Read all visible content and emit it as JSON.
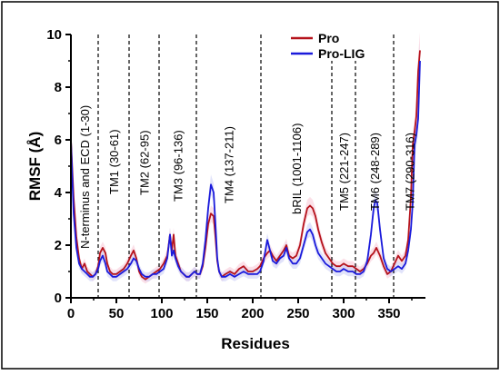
{
  "chart_data": {
    "type": "line",
    "xlabel": "Residues",
    "ylabel": "RMSF (Å)",
    "xlim": [
      0,
      390
    ],
    "ylim": [
      0,
      10
    ],
    "xticks": [
      0,
      50,
      100,
      150,
      200,
      250,
      300,
      350
    ],
    "yticks": [
      0,
      2,
      4,
      6,
      8,
      10
    ],
    "legend": {
      "position": "top-right"
    },
    "grid": false,
    "regions": [
      {
        "label": "N-terminus and ECD (1-30)",
        "x_start": 0,
        "boundary": 30
      },
      {
        "label": "TM1 (30-61)",
        "boundary": 64
      },
      {
        "label": "TM2 (62-95)",
        "boundary": 97
      },
      {
        "label": "TM3 (96-136)",
        "boundary": 138
      },
      {
        "label": "TM4 (137-211)",
        "boundary": 209
      },
      {
        "label": "bRIL (1001-1106)",
        "boundary": 287
      },
      {
        "label": "TM5 (221-247)",
        "boundary": 313
      },
      {
        "label": "TM6 (248-289)",
        "boundary": 355
      },
      {
        "label": "TM7 (290-316)",
        "x_end": 390
      }
    ],
    "series": [
      {
        "name": "Pro",
        "color": "#b5121b",
        "band_color": "#f7c6d6",
        "points": [
          [
            0,
            6.0
          ],
          [
            3,
            3.8
          ],
          [
            6,
            2.3
          ],
          [
            9,
            1.5
          ],
          [
            12,
            1.1
          ],
          [
            15,
            1.3
          ],
          [
            18,
            1.0
          ],
          [
            21,
            0.9
          ],
          [
            24,
            0.8
          ],
          [
            27,
            0.9
          ],
          [
            30,
            1.2
          ],
          [
            32,
            1.7
          ],
          [
            35,
            1.9
          ],
          [
            38,
            1.7
          ],
          [
            40,
            1.3
          ],
          [
            43,
            1.0
          ],
          [
            46,
            0.9
          ],
          [
            50,
            0.9
          ],
          [
            54,
            1.0
          ],
          [
            58,
            1.1
          ],
          [
            62,
            1.3
          ],
          [
            66,
            1.6
          ],
          [
            69,
            1.8
          ],
          [
            72,
            1.5
          ],
          [
            75,
            1.0
          ],
          [
            78,
            0.8
          ],
          [
            82,
            0.7
          ],
          [
            86,
            0.8
          ],
          [
            90,
            0.9
          ],
          [
            94,
            1.0
          ],
          [
            98,
            1.1
          ],
          [
            102,
            1.3
          ],
          [
            106,
            1.6
          ],
          [
            109,
            2.4
          ],
          [
            111,
            1.8
          ],
          [
            113,
            2.4
          ],
          [
            115,
            1.6
          ],
          [
            118,
            1.3
          ],
          [
            121,
            1.0
          ],
          [
            124,
            0.9
          ],
          [
            127,
            0.8
          ],
          [
            130,
            0.8
          ],
          [
            133,
            0.9
          ],
          [
            136,
            1.0
          ],
          [
            139,
            0.9
          ],
          [
            142,
            0.9
          ],
          [
            145,
            1.2
          ],
          [
            148,
            1.9
          ],
          [
            151,
            2.8
          ],
          [
            154,
            3.2
          ],
          [
            157,
            3.1
          ],
          [
            159,
            2.3
          ],
          [
            161,
            1.4
          ],
          [
            163,
            1.0
          ],
          [
            166,
            0.8
          ],
          [
            170,
            0.9
          ],
          [
            175,
            1.0
          ],
          [
            180,
            0.9
          ],
          [
            185,
            1.1
          ],
          [
            190,
            1.2
          ],
          [
            195,
            1.0
          ],
          [
            200,
            1.0
          ],
          [
            205,
            1.1
          ],
          [
            208,
            1.2
          ],
          [
            212,
            1.5
          ],
          [
            216,
            1.7
          ],
          [
            219,
            1.8
          ],
          [
            222,
            1.6
          ],
          [
            226,
            1.4
          ],
          [
            230,
            1.6
          ],
          [
            234,
            1.8
          ],
          [
            237,
            2.0
          ],
          [
            240,
            1.6
          ],
          [
            244,
            1.5
          ],
          [
            248,
            1.6
          ],
          [
            252,
            2.0
          ],
          [
            256,
            2.8
          ],
          [
            260,
            3.4
          ],
          [
            263,
            3.5
          ],
          [
            266,
            3.4
          ],
          [
            269,
            3.1
          ],
          [
            272,
            2.6
          ],
          [
            276,
            2.1
          ],
          [
            280,
            1.7
          ],
          [
            284,
            1.5
          ],
          [
            288,
            1.3
          ],
          [
            292,
            1.2
          ],
          [
            296,
            1.2
          ],
          [
            300,
            1.3
          ],
          [
            305,
            1.2
          ],
          [
            310,
            1.2
          ],
          [
            314,
            1.1
          ],
          [
            318,
            1.0
          ],
          [
            322,
            1.1
          ],
          [
            326,
            1.3
          ],
          [
            330,
            1.6
          ],
          [
            333,
            1.7
          ],
          [
            336,
            1.9
          ],
          [
            340,
            1.6
          ],
          [
            344,
            1.2
          ],
          [
            348,
            0.9
          ],
          [
            352,
            1.0
          ],
          [
            356,
            1.3
          ],
          [
            360,
            1.6
          ],
          [
            364,
            1.4
          ],
          [
            368,
            1.6
          ],
          [
            371,
            2.2
          ],
          [
            374,
            3.8
          ],
          [
            376,
            5.8
          ],
          [
            378,
            6.3
          ],
          [
            380,
            6.9
          ],
          [
            382,
            8.6
          ],
          [
            384,
            9.4
          ]
        ]
      },
      {
        "name": "Pro-LIG",
        "color": "#1a1adb",
        "band_color": "#c9ccf5",
        "points": [
          [
            0,
            6.0
          ],
          [
            3,
            3.2
          ],
          [
            6,
            1.9
          ],
          [
            9,
            1.3
          ],
          [
            12,
            1.1
          ],
          [
            15,
            1.0
          ],
          [
            18,
            0.9
          ],
          [
            21,
            0.8
          ],
          [
            24,
            0.8
          ],
          [
            27,
            0.9
          ],
          [
            30,
            1.1
          ],
          [
            32,
            1.4
          ],
          [
            35,
            1.6
          ],
          [
            38,
            1.3
          ],
          [
            40,
            1.0
          ],
          [
            43,
            0.9
          ],
          [
            46,
            0.8
          ],
          [
            50,
            0.8
          ],
          [
            54,
            0.9
          ],
          [
            58,
            1.0
          ],
          [
            62,
            1.1
          ],
          [
            66,
            1.3
          ],
          [
            69,
            1.5
          ],
          [
            72,
            1.4
          ],
          [
            75,
            1.1
          ],
          [
            78,
            0.9
          ],
          [
            82,
            0.8
          ],
          [
            86,
            0.8
          ],
          [
            90,
            0.9
          ],
          [
            94,
            0.9
          ],
          [
            98,
            1.0
          ],
          [
            102,
            1.1
          ],
          [
            106,
            1.5
          ],
          [
            109,
            2.4
          ],
          [
            111,
            1.6
          ],
          [
            113,
            1.8
          ],
          [
            115,
            1.5
          ],
          [
            118,
            1.2
          ],
          [
            121,
            1.0
          ],
          [
            124,
            0.9
          ],
          [
            127,
            0.8
          ],
          [
            130,
            0.8
          ],
          [
            133,
            0.9
          ],
          [
            136,
            1.0
          ],
          [
            139,
            0.9
          ],
          [
            142,
            0.9
          ],
          [
            145,
            1.3
          ],
          [
            148,
            2.2
          ],
          [
            151,
            3.4
          ],
          [
            154,
            4.3
          ],
          [
            157,
            4.0
          ],
          [
            159,
            2.8
          ],
          [
            161,
            1.5
          ],
          [
            163,
            1.0
          ],
          [
            166,
            0.8
          ],
          [
            170,
            0.8
          ],
          [
            175,
            0.9
          ],
          [
            180,
            0.8
          ],
          [
            185,
            0.9
          ],
          [
            190,
            1.0
          ],
          [
            195,
            0.9
          ],
          [
            200,
            0.9
          ],
          [
            205,
            0.9
          ],
          [
            208,
            1.0
          ],
          [
            212,
            1.4
          ],
          [
            216,
            2.2
          ],
          [
            219,
            1.8
          ],
          [
            222,
            1.4
          ],
          [
            226,
            1.3
          ],
          [
            230,
            1.5
          ],
          [
            234,
            1.6
          ],
          [
            237,
            1.9
          ],
          [
            240,
            1.5
          ],
          [
            244,
            1.3
          ],
          [
            248,
            1.3
          ],
          [
            252,
            1.5
          ],
          [
            256,
            2.0
          ],
          [
            260,
            2.5
          ],
          [
            263,
            2.6
          ],
          [
            266,
            2.4
          ],
          [
            269,
            2.0
          ],
          [
            272,
            1.7
          ],
          [
            276,
            1.5
          ],
          [
            280,
            1.3
          ],
          [
            284,
            1.2
          ],
          [
            288,
            1.1
          ],
          [
            292,
            1.0
          ],
          [
            296,
            1.0
          ],
          [
            300,
            1.1
          ],
          [
            305,
            1.0
          ],
          [
            310,
            1.0
          ],
          [
            314,
            0.9
          ],
          [
            318,
            0.9
          ],
          [
            322,
            1.0
          ],
          [
            326,
            1.4
          ],
          [
            330,
            2.4
          ],
          [
            333,
            3.4
          ],
          [
            335,
            3.7
          ],
          [
            337,
            3.6
          ],
          [
            340,
            2.6
          ],
          [
            344,
            1.5
          ],
          [
            348,
            1.1
          ],
          [
            352,
            1.0
          ],
          [
            356,
            1.1
          ],
          [
            360,
            1.2
          ],
          [
            364,
            1.1
          ],
          [
            368,
            1.3
          ],
          [
            371,
            1.8
          ],
          [
            374,
            2.6
          ],
          [
            376,
            3.6
          ],
          [
            378,
            5.8
          ],
          [
            380,
            6.2
          ],
          [
            382,
            6.8
          ],
          [
            384,
            9.0
          ]
        ]
      }
    ]
  }
}
